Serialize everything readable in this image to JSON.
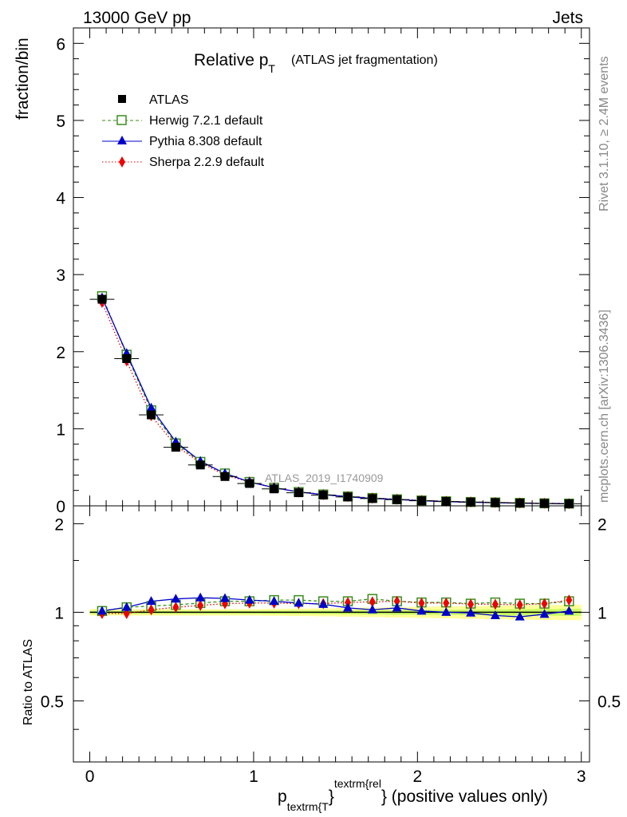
{
  "header": {
    "energy_label": "13000 GeV pp",
    "category_label": "Jets"
  },
  "side_labels": {
    "rivet": "Rivet 3.1.10, ≥ 2.4M events",
    "mcplots": "mcplots.cern.ch [arXiv:1306.3436]"
  },
  "chart_data": {
    "type": "scatter",
    "title_main": "Relative p",
    "title_sub": "T",
    "title_rest": "(ATLAS jet fragmentation)",
    "watermark": "ATLAS_2019_I1740909",
    "ylabel": "fraction/bin",
    "ratio_ylabel": "Ratio to ATLAS",
    "xlabel": {
      "p": "p",
      "sub": "textrm{T",
      "brace": "}",
      "sup": "textrm{rel",
      "rest": "} (positive values only)"
    },
    "xlim": [
      -0.1,
      3.05
    ],
    "ylim": [
      0,
      6.2
    ],
    "ratio_ylim": [
      0.31,
      2.3
    ],
    "x_ticks": [
      "0",
      "1",
      "2",
      "3"
    ],
    "y_ticks": [
      "0",
      "1",
      "2",
      "3",
      "4",
      "5",
      "6"
    ],
    "ratio_ticks": [
      "0.5",
      "1",
      "2"
    ],
    "x": [
      0.075,
      0.225,
      0.375,
      0.525,
      0.675,
      0.825,
      0.975,
      1.125,
      1.275,
      1.425,
      1.575,
      1.725,
      1.875,
      2.025,
      2.175,
      2.325,
      2.475,
      2.625,
      2.775,
      2.925
    ],
    "bin_half_width": 0.075,
    "series": [
      {
        "name": "ATLAS",
        "color": "#000000",
        "marker": "filled-square",
        "values": [
          2.68,
          1.91,
          1.18,
          0.76,
          0.53,
          0.38,
          0.29,
          0.22,
          0.17,
          0.14,
          0.115,
          0.095,
          0.08,
          0.066,
          0.056,
          0.048,
          0.042,
          0.036,
          0.031,
          0.027
        ]
      },
      {
        "name": "Herwig 7.2.1 default",
        "color": "#3a8d1b",
        "marker": "open-square",
        "line": "dashed",
        "values": [
          2.72,
          1.96,
          1.24,
          0.81,
          0.57,
          0.42,
          0.31,
          0.235,
          0.18,
          0.148,
          0.122,
          0.102,
          0.085,
          0.07,
          0.059,
          0.05,
          0.044,
          0.038,
          0.033,
          0.029
        ],
        "ratio": [
          1.01,
          1.04,
          1.05,
          1.06,
          1.075,
          1.09,
          1.09,
          1.1,
          1.1,
          1.09,
          1.09,
          1.11,
          1.09,
          1.08,
          1.08,
          1.07,
          1.08,
          1.07,
          1.07,
          1.09
        ]
      },
      {
        "name": "Pythia 8.308 default",
        "color": "#0000cc",
        "marker": "filled-triangle",
        "line": "solid",
        "values": [
          2.7,
          1.98,
          1.27,
          0.83,
          0.58,
          0.42,
          0.31,
          0.235,
          0.18,
          0.146,
          0.117,
          0.096,
          0.082,
          0.066,
          0.055,
          0.047,
          0.041,
          0.035,
          0.03,
          0.027
        ],
        "ratio": [
          1.01,
          1.04,
          1.09,
          1.11,
          1.12,
          1.115,
          1.1,
          1.09,
          1.075,
          1.065,
          1.035,
          1.02,
          1.035,
          1.01,
          1.0,
          0.995,
          0.975,
          0.965,
          0.985,
          1.01
        ]
      },
      {
        "name": "Sherpa 2.2.9 default",
        "color": "#ee0000",
        "marker": "filled-diamond",
        "line": "dotted",
        "values": [
          2.64,
          1.88,
          1.17,
          0.78,
          0.56,
          0.4,
          0.31,
          0.235,
          0.18,
          0.145,
          0.12,
          0.1,
          0.085,
          0.07,
          0.059,
          0.05,
          0.044,
          0.038,
          0.033,
          0.029
        ],
        "ratio": [
          0.99,
          0.99,
          1.02,
          1.04,
          1.055,
          1.07,
          1.075,
          1.075,
          1.07,
          1.07,
          1.08,
          1.085,
          1.09,
          1.075,
          1.075,
          1.065,
          1.065,
          1.06,
          1.07,
          1.1
        ]
      }
    ],
    "uncertainty_band": {
      "inner_color": "#ccff66",
      "outer_color": "#ffff99",
      "inner_half": [
        0.012,
        0.012,
        0.012,
        0.012,
        0.012,
        0.012,
        0.012,
        0.013,
        0.014,
        0.015,
        0.016,
        0.017,
        0.018,
        0.019,
        0.02,
        0.022,
        0.024,
        0.026,
        0.027,
        0.028
      ],
      "outer_half": [
        0.025,
        0.025,
        0.025,
        0.025,
        0.025,
        0.025,
        0.025,
        0.027,
        0.029,
        0.031,
        0.034,
        0.037,
        0.04,
        0.043,
        0.046,
        0.05,
        0.053,
        0.056,
        0.058,
        0.06
      ]
    }
  }
}
